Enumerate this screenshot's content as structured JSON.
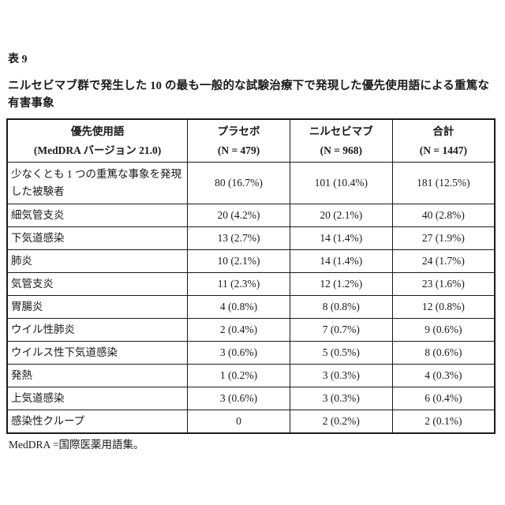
{
  "page": {
    "table_label": "表 9",
    "title_line1": "ニルセビマブ群で発生した 10 の最も一般的な試験治療下で発現した優先使用語による重篤な",
    "title_line2": "有害事象",
    "footnote": "MedDRA =国際医薬用語集。"
  },
  "table": {
    "columns": [
      {
        "line1": "優先使用語",
        "line2": "(MedDRA バージョン 21.0)"
      },
      {
        "line1": "プラセボ",
        "line2": "(N = 479)"
      },
      {
        "line1": "ニルセビマブ",
        "line2": "(N = 968)"
      },
      {
        "line1": "合計",
        "line2": "(N = 1447)"
      }
    ],
    "rows": [
      {
        "label": "少なくとも 1 つの重篤な事象を発現した被験者",
        "placebo": "80 (16.7%)",
        "nirsevimab": "101 (10.4%)",
        "total": "181 (12.5%)"
      },
      {
        "label": "細気管支炎",
        "placebo": "20 (4.2%)",
        "nirsevimab": "20 (2.1%)",
        "total": "40 (2.8%)"
      },
      {
        "label": "下気道感染",
        "placebo": "13 (2.7%)",
        "nirsevimab": "14 (1.4%)",
        "total": "27 (1.9%)"
      },
      {
        "label": "肺炎",
        "placebo": "10 (2.1%)",
        "nirsevimab": "14 (1.4%)",
        "total": "24 (1.7%)"
      },
      {
        "label": "気管支炎",
        "placebo": "11 (2.3%)",
        "nirsevimab": "12 (1.2%)",
        "total": "23 (1.6%)"
      },
      {
        "label": "胃腸炎",
        "placebo": "4 (0.8%)",
        "nirsevimab": "8 (0.8%)",
        "total": "12 (0.8%)"
      },
      {
        "label": "ウイル性肺炎",
        "placebo": "2 (0.4%)",
        "nirsevimab": "7 (0.7%)",
        "total": "9 (0.6%)"
      },
      {
        "label": "ウイルス性下気道感染",
        "placebo": "3 (0.6%)",
        "nirsevimab": "5 (0.5%)",
        "total": "8 (0.6%)"
      },
      {
        "label": "発熱",
        "placebo": "1 (0.2%)",
        "nirsevimab": "3 (0.3%)",
        "total": "4 (0.3%)"
      },
      {
        "label": "上気道感染",
        "placebo": "3 (0.6%)",
        "nirsevimab": "3 (0.3%)",
        "total": "6 (0.4%)"
      },
      {
        "label": "感染性クループ",
        "placebo": "0",
        "nirsevimab": "2 (0.2%)",
        "total": "2 (0.1%)"
      }
    ]
  },
  "colors": {
    "text": "#1a1a1a",
    "border": "#1a1a1a",
    "background": "#ffffff"
  }
}
